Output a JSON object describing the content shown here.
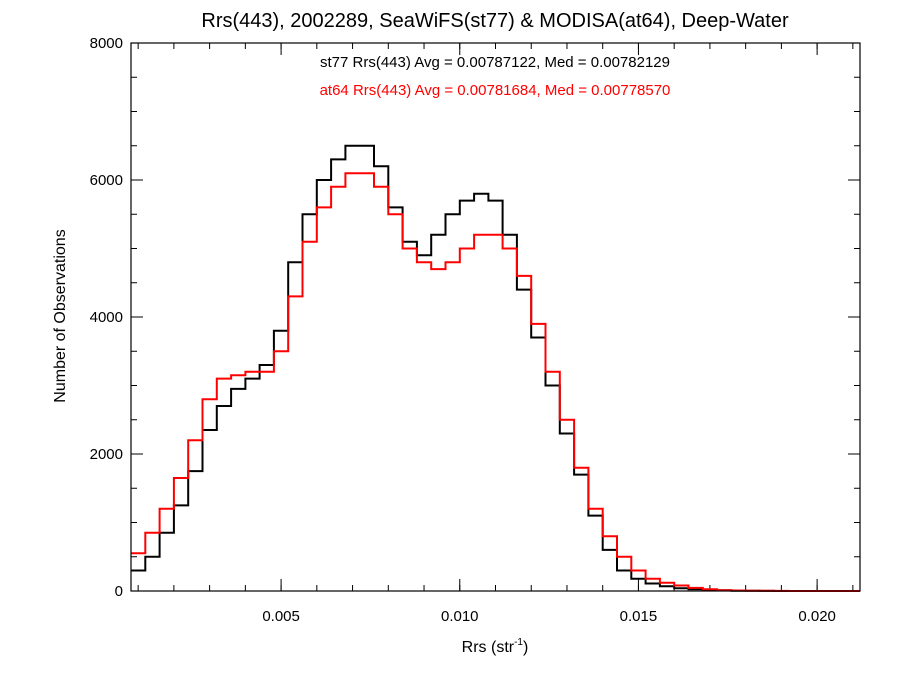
{
  "chart_data": {
    "type": "line",
    "step": true,
    "title": "Rrs(443), 2002289, SeaWiFS(st77) & MODISA(at64), Deep-Water",
    "xlabel_main": "Rrs (str",
    "xlabel_sup": "-1",
    "xlabel_close": ")",
    "ylabel": "Number of Observations",
    "xlim": [
      0.0008,
      0.0212
    ],
    "ylim": [
      0,
      8000
    ],
    "xticks": [
      0.005,
      0.01,
      0.015,
      0.02
    ],
    "xtick_labels": [
      "0.005",
      "0.010",
      "0.015",
      "0.020"
    ],
    "xminor_step": 0.001,
    "yticks": [
      0,
      2000,
      4000,
      6000,
      8000
    ],
    "ytick_labels": [
      "0",
      "2000",
      "4000",
      "6000",
      "8000"
    ],
    "yminor_step": 500,
    "grid": false,
    "series": [
      {
        "name": "st77",
        "color": "#000000",
        "annotation": "st77 Rrs(443) Avg = 0.00787122, Med = 0.00782129",
        "x": [
          0.0008,
          0.0012,
          0.0016,
          0.002,
          0.0024,
          0.0028,
          0.0032,
          0.0036,
          0.004,
          0.0044,
          0.0048,
          0.0052,
          0.0056,
          0.006,
          0.0064,
          0.0068,
          0.0072,
          0.0076,
          0.008,
          0.0084,
          0.0088,
          0.0092,
          0.0096,
          0.01,
          0.0104,
          0.0108,
          0.0112,
          0.0116,
          0.012,
          0.0124,
          0.0128,
          0.0132,
          0.0136,
          0.014,
          0.0144,
          0.0148,
          0.0152,
          0.0156,
          0.016,
          0.0164,
          0.0168,
          0.0172,
          0.0176,
          0.018,
          0.0184,
          0.0188,
          0.0192,
          0.0196,
          0.02,
          0.0204,
          0.0208
        ],
        "values": [
          300,
          500,
          850,
          1250,
          1750,
          2350,
          2700,
          2950,
          3100,
          3300,
          3800,
          4800,
          5500,
          6000,
          6300,
          6500,
          6500,
          6200,
          5600,
          5100,
          4900,
          5200,
          5500,
          5700,
          5800,
          5700,
          5200,
          4400,
          3700,
          3000,
          2300,
          1700,
          1100,
          600,
          300,
          180,
          110,
          70,
          40,
          25,
          15,
          10,
          5,
          3,
          2,
          0,
          0,
          0,
          0,
          0,
          0
        ]
      },
      {
        "name": "at64",
        "color": "#ff0000",
        "annotation": "at64 Rrs(443) Avg = 0.00781684, Med = 0.00778570",
        "x": [
          0.0008,
          0.0012,
          0.0016,
          0.002,
          0.0024,
          0.0028,
          0.0032,
          0.0036,
          0.004,
          0.0044,
          0.0048,
          0.0052,
          0.0056,
          0.006,
          0.0064,
          0.0068,
          0.0072,
          0.0076,
          0.008,
          0.0084,
          0.0088,
          0.0092,
          0.0096,
          0.01,
          0.0104,
          0.0108,
          0.0112,
          0.0116,
          0.012,
          0.0124,
          0.0128,
          0.0132,
          0.0136,
          0.014,
          0.0144,
          0.0148,
          0.0152,
          0.0156,
          0.016,
          0.0164,
          0.0168,
          0.0172,
          0.0176,
          0.018,
          0.0184,
          0.0188,
          0.0192,
          0.0196,
          0.02,
          0.0204,
          0.0208
        ],
        "values": [
          550,
          850,
          1200,
          1650,
          2200,
          2800,
          3100,
          3150,
          3200,
          3200,
          3500,
          4300,
          5100,
          5600,
          5900,
          6100,
          6100,
          5900,
          5500,
          5000,
          4800,
          4700,
          4800,
          5000,
          5200,
          5200,
          5000,
          4600,
          3900,
          3200,
          2500,
          1800,
          1200,
          800,
          500,
          300,
          180,
          120,
          80,
          45,
          25,
          12,
          8,
          5,
          3,
          2,
          0,
          0,
          0,
          0,
          0
        ]
      }
    ]
  }
}
